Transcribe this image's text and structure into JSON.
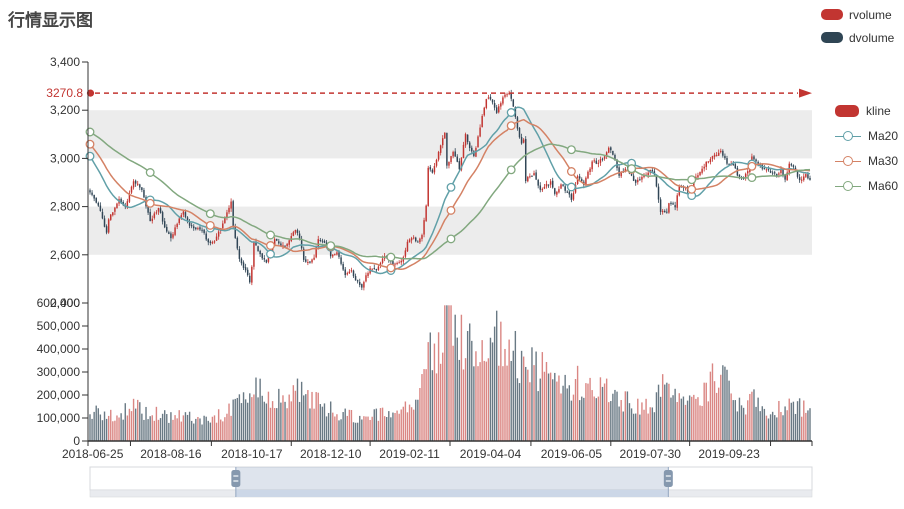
{
  "title": "行情显示图",
  "legend_top": {
    "items": [
      {
        "label": "rvolume",
        "color": "#c23531"
      },
      {
        "label": "dvolume",
        "color": "#2f4554"
      }
    ]
  },
  "legend_right": {
    "kline": {
      "label": "kline",
      "color": "#c23531"
    },
    "ma_items": [
      {
        "label": "Ma20",
        "color": "#61a0a8"
      },
      {
        "label": "Ma30",
        "color": "#d48265"
      },
      {
        "label": "Ma60",
        "color": "#82a87f"
      }
    ]
  },
  "chart_data": {
    "type": "candlestick+volume",
    "title": "行情显示图",
    "price_axis": {
      "min": 2400,
      "max": 3400,
      "tick_step": 200,
      "tick_labels": [
        "3,400",
        "3,200",
        "3,000",
        "2,800",
        "2,600",
        "2,400"
      ],
      "tick_values": [
        3400,
        3200,
        3000,
        2800,
        2600,
        2400
      ]
    },
    "volume_axis": {
      "min": 0,
      "max": 600000,
      "tick_labels": [
        "600,000",
        "500,000",
        "400,000",
        "300,000",
        "200,000",
        "100,000",
        "0"
      ],
      "tick_values": [
        600000,
        500000,
        400000,
        300000,
        200000,
        100000,
        0
      ]
    },
    "x_axis": {
      "total_points": 348,
      "tick_labels": [
        "2018-06-25",
        "2018-08-16",
        "2018-10-17",
        "2018-12-10",
        "2019-02-11",
        "2019-04-04",
        "2019-06-05",
        "2019-07-30",
        "2019-09-23"
      ],
      "tick_idx": [
        0,
        39,
        78,
        116,
        154,
        193,
        232,
        270,
        308
      ]
    },
    "markline": {
      "value": 3270.8,
      "label": "3270.8",
      "color": "#c23531"
    },
    "grid_band_color": "#ececec",
    "axis_color": "#333333",
    "series": {
      "kline": {
        "up_color": "#c23531",
        "down_color": "#314656",
        "close_anchors": [
          [
            0,
            2859
          ],
          [
            4,
            2804
          ],
          [
            8,
            2692
          ],
          [
            9,
            2747
          ],
          [
            14,
            2831
          ],
          [
            17,
            2798
          ],
          [
            21,
            2905
          ],
          [
            25,
            2869
          ],
          [
            29,
            2740
          ],
          [
            33,
            2794
          ],
          [
            36,
            2714
          ],
          [
            39,
            2669
          ],
          [
            42,
            2728
          ],
          [
            45,
            2780
          ],
          [
            48,
            2721
          ],
          [
            54,
            2702
          ],
          [
            57,
            2652
          ],
          [
            60,
            2656
          ],
          [
            64,
            2730
          ],
          [
            68,
            2821
          ],
          [
            69,
            2716
          ],
          [
            72,
            2583
          ],
          [
            75,
            2536
          ],
          [
            77,
            2486
          ],
          [
            78,
            2550
          ],
          [
            79,
            2654
          ],
          [
            82,
            2603
          ],
          [
            85,
            2568
          ],
          [
            87,
            2606
          ],
          [
            89,
            2665
          ],
          [
            92,
            2635
          ],
          [
            95,
            2645
          ],
          [
            99,
            2703
          ],
          [
            101,
            2668
          ],
          [
            103,
            2579
          ],
          [
            106,
            2567
          ],
          [
            108,
            2588
          ],
          [
            110,
            2665
          ],
          [
            113,
            2650
          ],
          [
            116,
            2594
          ],
          [
            119,
            2610
          ],
          [
            123,
            2516
          ],
          [
            126,
            2536
          ],
          [
            128,
            2494
          ],
          [
            131,
            2464
          ],
          [
            133,
            2515
          ],
          [
            135,
            2544
          ],
          [
            138,
            2536
          ],
          [
            142,
            2596
          ],
          [
            146,
            2560
          ],
          [
            150,
            2575
          ],
          [
            152,
            2618
          ],
          [
            153,
            2654
          ],
          [
            156,
            2672
          ],
          [
            158,
            2654
          ],
          [
            160,
            2682
          ],
          [
            162,
            2804
          ],
          [
            163,
            2961
          ],
          [
            165,
            2941
          ],
          [
            167,
            2994
          ],
          [
            169,
            3054
          ],
          [
            171,
            3106
          ],
          [
            172,
            2970
          ],
          [
            175,
            3027
          ],
          [
            178,
            2955
          ],
          [
            181,
            3101
          ],
          [
            183,
            3043
          ],
          [
            185,
            3010
          ],
          [
            187,
            3091
          ],
          [
            189,
            3176
          ],
          [
            191,
            3246
          ],
          [
            193,
            3245
          ],
          [
            196,
            3189
          ],
          [
            199,
            3253
          ],
          [
            202,
            3271
          ],
          [
            204,
            3215
          ],
          [
            206,
            3124
          ],
          [
            208,
            3062
          ],
          [
            209,
            3078
          ],
          [
            210,
            2906
          ],
          [
            212,
            2926
          ],
          [
            214,
            2939
          ],
          [
            217,
            2870
          ],
          [
            219,
            2882
          ],
          [
            222,
            2905
          ],
          [
            224,
            2853
          ],
          [
            227,
            2892
          ],
          [
            230,
            2862
          ],
          [
            232,
            2828
          ],
          [
            235,
            2926
          ],
          [
            238,
            2890
          ],
          [
            242,
            2987
          ],
          [
            245,
            2982
          ],
          [
            248,
            3008
          ],
          [
            250,
            3044
          ],
          [
            252,
            3015
          ],
          [
            255,
            2928
          ],
          [
            258,
            2957
          ],
          [
            260,
            2937
          ],
          [
            263,
            2899
          ],
          [
            266,
            2923
          ],
          [
            270,
            2952
          ],
          [
            272,
            2933
          ],
          [
            275,
            2778
          ],
          [
            278,
            2775
          ],
          [
            279,
            2814
          ],
          [
            282,
            2797
          ],
          [
            284,
            2883
          ],
          [
            287,
            2880
          ],
          [
            289,
            2863
          ],
          [
            292,
            2924
          ],
          [
            295,
            2957
          ],
          [
            297,
            2986
          ],
          [
            300,
            3009
          ],
          [
            304,
            3031
          ],
          [
            307,
            2978
          ],
          [
            310,
            2977
          ],
          [
            312,
            2929
          ],
          [
            315,
            2914
          ],
          [
            317,
            2947
          ],
          [
            319,
            3008
          ],
          [
            322,
            2978
          ],
          [
            325,
            2955
          ],
          [
            328,
            2941
          ],
          [
            331,
            2929
          ],
          [
            333,
            2958
          ],
          [
            335,
            2912
          ],
          [
            337,
            2978
          ],
          [
            340,
            2952
          ],
          [
            342,
            2910
          ],
          [
            345,
            2935
          ],
          [
            347,
            2911
          ]
        ],
        "clamp_close": [
          2441,
          3272
        ],
        "clamp_low_high": [
          2438,
          3289
        ]
      },
      "volume": {
        "up_color": "rgba(194,53,49,0.6)",
        "down_color": "rgba(47,69,84,0.72)",
        "volume_anchors": [
          [
            0,
            128000
          ],
          [
            5,
            118000
          ],
          [
            10,
            105000
          ],
          [
            15,
            112000
          ],
          [
            20,
            172000
          ],
          [
            24,
            140000
          ],
          [
            29,
            110000
          ],
          [
            34,
            125000
          ],
          [
            39,
            98000
          ],
          [
            45,
            118000
          ],
          [
            50,
            92000
          ],
          [
            55,
            88000
          ],
          [
            60,
            95000
          ],
          [
            66,
            132000
          ],
          [
            69,
            150000
          ],
          [
            72,
            210000
          ],
          [
            76,
            180000
          ],
          [
            79,
            238000
          ],
          [
            83,
            200000
          ],
          [
            87,
            160000
          ],
          [
            91,
            185000
          ],
          [
            95,
            168000
          ],
          [
            99,
            248000
          ],
          [
            103,
            215000
          ],
          [
            107,
            165000
          ],
          [
            110,
            182000
          ],
          [
            114,
            142000
          ],
          [
            118,
            128000
          ],
          [
            123,
            118000
          ],
          [
            128,
            102000
          ],
          [
            131,
            96000
          ],
          [
            135,
            128000
          ],
          [
            139,
            108000
          ],
          [
            143,
            132000
          ],
          [
            147,
            105000
          ],
          [
            150,
            118000
          ],
          [
            153,
            158000
          ],
          [
            156,
            172000
          ],
          [
            159,
            198000
          ],
          [
            162,
            280000
          ],
          [
            163,
            420000
          ],
          [
            166,
            390000
          ],
          [
            169,
            460000
          ],
          [
            171,
            540000
          ],
          [
            174,
            575000
          ],
          [
            177,
            520000
          ],
          [
            180,
            440000
          ],
          [
            183,
            400000
          ],
          [
            186,
            370000
          ],
          [
            189,
            420000
          ],
          [
            191,
            480000
          ],
          [
            193,
            500000
          ],
          [
            196,
            470000
          ],
          [
            199,
            380000
          ],
          [
            202,
            420000
          ],
          [
            205,
            370000
          ],
          [
            208,
            330000
          ],
          [
            210,
            390000
          ],
          [
            213,
            340000
          ],
          [
            216,
            290000
          ],
          [
            219,
            310000
          ],
          [
            222,
            270000
          ],
          [
            225,
            255000
          ],
          [
            228,
            230000
          ],
          [
            232,
            205000
          ],
          [
            235,
            260000
          ],
          [
            238,
            210000
          ],
          [
            242,
            250000
          ],
          [
            245,
            215000
          ],
          [
            248,
            240000
          ],
          [
            250,
            225000
          ],
          [
            253,
            185000
          ],
          [
            256,
            165000
          ],
          [
            259,
            172000
          ],
          [
            262,
            150000
          ],
          [
            266,
            158000
          ],
          [
            270,
            165000
          ],
          [
            273,
            180000
          ],
          [
            275,
            258000
          ],
          [
            278,
            210000
          ],
          [
            281,
            190000
          ],
          [
            284,
            205000
          ],
          [
            287,
            170000
          ],
          [
            290,
            160000
          ],
          [
            293,
            185000
          ],
          [
            297,
            230000
          ],
          [
            300,
            260000
          ],
          [
            304,
            318000
          ],
          [
            307,
            250000
          ],
          [
            310,
            205000
          ],
          [
            313,
            160000
          ],
          [
            316,
            135000
          ],
          [
            319,
            185000
          ],
          [
            322,
            160000
          ],
          [
            325,
            148000
          ],
          [
            328,
            132000
          ],
          [
            331,
            140000
          ],
          [
            334,
            155000
          ],
          [
            337,
            172000
          ],
          [
            340,
            160000
          ],
          [
            343,
            148000
          ],
          [
            347,
            138000
          ]
        ]
      },
      "ma_lines": [
        {
          "name": "Ma20",
          "period": 20,
          "color": "#61a0a8"
        },
        {
          "name": "Ma30",
          "period": 30,
          "color": "#d48265"
        },
        {
          "name": "Ma60",
          "period": 60,
          "color": "#82a87f"
        }
      ],
      "ma_seed": {
        "flat_value": 3160,
        "flat_days": 40,
        "drop_to": 2900,
        "drop_days": 20
      },
      "ma_symbol_interval": 29
    }
  },
  "datazoom": {
    "start_pct": 20.2,
    "end_pct": 80.1,
    "track_fill": "#ffffff",
    "track_border": "#d7d9dd",
    "selection_fill": "rgba(160,178,204,0.35)",
    "edge_color": "#93a6c0",
    "handle_fill": "#8598ae",
    "strip_fill": "#e9ebef",
    "strip_sel_fill": "#ccd7e7"
  }
}
